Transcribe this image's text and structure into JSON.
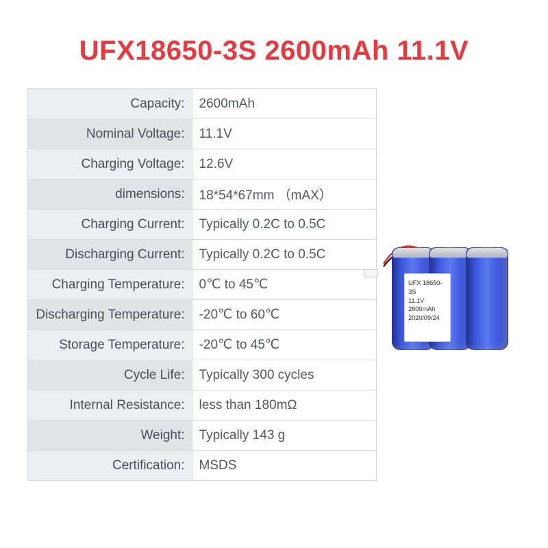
{
  "title": {
    "text": "UFX18650-3S 2600mAh 11.1V",
    "color": "#e83a3e"
  },
  "table": {
    "odd_bg": "#eceef1",
    "even_bg": "#e1e3e7",
    "border_color": "#d8d9db",
    "label_color": "#4a4d52",
    "value_color": "#54575c",
    "rows": [
      {
        "label": "Capacity:",
        "value": "2600mAh"
      },
      {
        "label": "Nominal Voltage:",
        "value": "11.1V"
      },
      {
        "label": "Charging Voltage:",
        "value": "12.6V"
      },
      {
        "label": "dimensions:",
        "value": "18*54*67mm （mAX）"
      },
      {
        "label": "Charging Current:",
        "value": "Typically 0.2C to 0.5C"
      },
      {
        "label": "Discharging Current:",
        "value": "Typically 0.2C to 0.5C"
      },
      {
        "label": "Charging Temperature:",
        "value": "0℃ to 45℃"
      },
      {
        "label": "Discharging Temperature:",
        "value": "-20℃ to 60℃"
      },
      {
        "label": "Storage Temperature:",
        "value": "-20℃ to 45℃"
      },
      {
        "label": "Cycle Life:",
        "value": "Typically 300 cycles"
      },
      {
        "label": "Internal Resistance:",
        "value": "less than 180mΩ"
      },
      {
        "label": "Weight:",
        "value": "Typically 143 g"
      },
      {
        "label": "Certification:",
        "value": "MSDS"
      }
    ]
  },
  "battery": {
    "wrap_color": "#3a56d8",
    "wrap_highlight": "#5d78f0",
    "wrap_shadow": "#2438a8",
    "wire_red": "#d93838",
    "wire_black": "#2a2a2a",
    "label_lines": [
      "UFX 18650-3S",
      "11.1V 2600mAh",
      "2020/09/24"
    ]
  }
}
